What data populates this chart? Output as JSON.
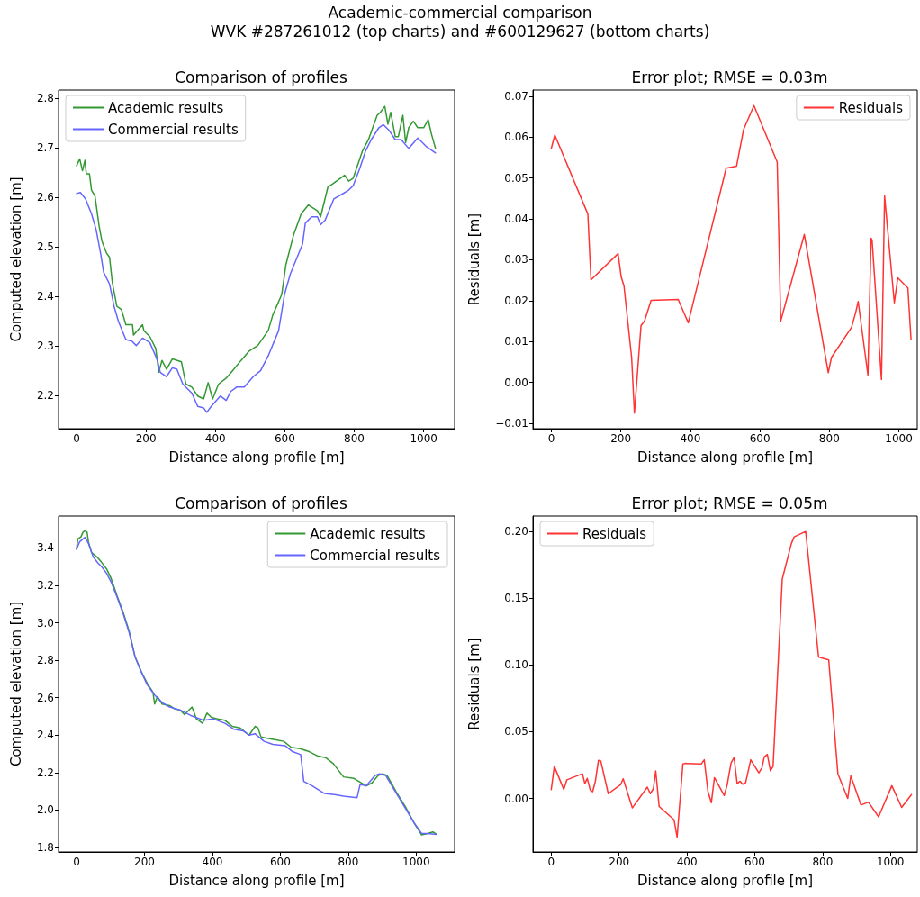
{
  "chart_data": [
    {
      "type": "line",
      "title": "Comparison of profiles",
      "xlabel": "Distance along profile [m]",
      "ylabel": "Computed elevation [m]",
      "annotations": [
        "Academic-commercial comparison",
        "WVK #287261012 (top charts) and #600129627 (bottom charts)"
      ],
      "grid": false,
      "legend": "top left",
      "marker": "none",
      "line_style": "solid",
      "xlim": [
        -52,
        1089
      ],
      "xticks": [
        0,
        200,
        400,
        600,
        800,
        1000
      ],
      "ylim": [
        2.133,
        2.817
      ],
      "yticks": [
        2.2,
        2.3,
        2.4,
        2.5,
        2.6,
        2.7,
        2.8
      ],
      "series": [
        {
          "name": "Academic results",
          "color": "#339933",
          "x": [
            0,
            9,
            17,
            24,
            28,
            37,
            43,
            53,
            65,
            73,
            86,
            95,
            103,
            116,
            129,
            142,
            161,
            164,
            190,
            194,
            211,
            228,
            237,
            246,
            259,
            276,
            302,
            315,
            332,
            349,
            366,
            379,
            392,
            409,
            431,
            453,
            474,
            496,
            522,
            552,
            565,
            591,
            603,
            625,
            647,
            668,
            694,
            703,
            724,
            737,
            772,
            784,
            797,
            823,
            841,
            866,
            875,
            888,
            897,
            905,
            918,
            927,
            940,
            948,
            957,
            970,
            983,
            1000,
            1013,
            1022,
            1034
          ],
          "values": [
            2.664,
            2.678,
            2.654,
            2.675,
            2.648,
            2.648,
            2.615,
            2.603,
            2.542,
            2.512,
            2.488,
            2.479,
            2.428,
            2.38,
            2.374,
            2.343,
            2.343,
            2.322,
            2.343,
            2.331,
            2.319,
            2.295,
            2.247,
            2.271,
            2.253,
            2.274,
            2.268,
            2.223,
            2.217,
            2.199,
            2.193,
            2.226,
            2.193,
            2.223,
            2.235,
            2.253,
            2.271,
            2.289,
            2.301,
            2.331,
            2.362,
            2.404,
            2.464,
            2.524,
            2.567,
            2.585,
            2.573,
            2.561,
            2.621,
            2.627,
            2.645,
            2.633,
            2.639,
            2.693,
            2.717,
            2.766,
            2.772,
            2.784,
            2.748,
            2.772,
            2.723,
            2.723,
            2.766,
            2.711,
            2.741,
            2.754,
            2.741,
            2.741,
            2.757,
            2.729,
            2.699
          ]
        },
        {
          "name": "Commercial results",
          "color": "#6666ff",
          "x": [
            0,
            11,
            26,
            43,
            56,
            69,
            78,
            95,
            108,
            121,
            142,
            159,
            172,
            190,
            211,
            233,
            241,
            259,
            276,
            289,
            306,
            332,
            349,
            366,
            375,
            388,
            414,
            431,
            444,
            461,
            483,
            509,
            530,
            552,
            582,
            599,
            616,
            651,
            659,
            677,
            694,
            703,
            716,
            741,
            763,
            784,
            797,
            815,
            832,
            849,
            871,
            884,
            901,
            918,
            935,
            957,
            983,
            1009,
            1034
          ],
          "values": [
            2.608,
            2.61,
            2.597,
            2.567,
            2.536,
            2.488,
            2.449,
            2.425,
            2.38,
            2.349,
            2.313,
            2.31,
            2.301,
            2.316,
            2.307,
            2.271,
            2.247,
            2.238,
            2.256,
            2.253,
            2.223,
            2.205,
            2.178,
            2.175,
            2.166,
            2.178,
            2.199,
            2.19,
            2.208,
            2.217,
            2.217,
            2.238,
            2.25,
            2.28,
            2.331,
            2.404,
            2.446,
            2.506,
            2.548,
            2.561,
            2.561,
            2.545,
            2.554,
            2.597,
            2.606,
            2.615,
            2.624,
            2.657,
            2.693,
            2.717,
            2.741,
            2.747,
            2.735,
            2.717,
            2.717,
            2.699,
            2.72,
            2.702,
            2.69
          ]
        }
      ]
    },
    {
      "type": "line",
      "title": "Error plot; RMSE = 0.03m",
      "xlabel": "Distance along profile [m]",
      "ylabel": "Residuals [m]",
      "grid": false,
      "legend": "top right",
      "marker": "none",
      "line_style": "solid",
      "xlim": [
        -53,
        1053
      ],
      "xticks": [
        0,
        200,
        400,
        600,
        800,
        1000
      ],
      "ylim": [
        -0.0113,
        0.0715
      ],
      "yticks": [
        {
          "value": -0.01,
          "label": "−0.01"
        },
        {
          "value": 0,
          "label": "0.00"
        },
        {
          "value": 0.01,
          "label": "0.01"
        },
        {
          "value": 0.02,
          "label": "0.02"
        },
        {
          "value": 0.03,
          "label": "0.03"
        },
        {
          "value": 0.04,
          "label": "0.04"
        },
        {
          "value": 0.05,
          "label": "0.05"
        },
        {
          "value": 0.06,
          "label": "0.06"
        },
        {
          "value": 0.07,
          "label": "0.07"
        }
      ],
      "series": [
        {
          "name": "Residuals",
          "color": "#ff3333",
          "x": [
            0,
            10,
            105,
            114,
            192,
            201,
            209,
            231,
            239,
            258,
            268,
            287,
            365,
            394,
            503,
            533,
            553,
            583,
            650,
            660,
            728,
            797,
            806,
            864,
            876,
            883,
            911,
            920,
            923,
            950,
            959,
            987,
            997,
            1026,
            1035
          ],
          "values": [
            0.0573,
            0.0605,
            0.0412,
            0.0251,
            0.0315,
            0.0258,
            0.0236,
            0.0061,
            -0.0075,
            0.0139,
            0.015,
            0.0201,
            0.0203,
            0.0146,
            0.0524,
            0.0529,
            0.0618,
            0.0677,
            0.0539,
            0.015,
            0.0362,
            0.0024,
            0.0061,
            0.0135,
            0.0172,
            0.0198,
            0.0018,
            0.0353,
            0.0348,
            0.0007,
            0.0456,
            0.0195,
            0.0256,
            0.0231,
            0.0106
          ]
        }
      ]
    },
    {
      "type": "line",
      "title": "Comparison of profiles",
      "xlabel": "Distance along profile [m]",
      "ylabel": "Computed elevation [m]",
      "grid": false,
      "legend": "top right",
      "marker": "none",
      "line_style": "solid",
      "xlim": [
        -53,
        1113
      ],
      "xticks": [
        0,
        200,
        400,
        600,
        800,
        1000
      ],
      "ylim": [
        1.776,
        3.57
      ],
      "yticks": [
        1.8,
        {
          "value": 2,
          "label": "2.0"
        },
        2.2,
        2.4,
        2.6,
        2.8,
        {
          "value": 3,
          "label": "3.0"
        },
        3.2,
        3.4
      ],
      "series": [
        {
          "name": "Academic results",
          "color": "#339933",
          "x": [
            0,
            4,
            13,
            19,
            25,
            31,
            35,
            44,
            62,
            71,
            88,
            102,
            119,
            137,
            155,
            172,
            190,
            208,
            225,
            230,
            238,
            252,
            274,
            287,
            305,
            318,
            327,
            340,
            353,
            371,
            384,
            397,
            415,
            437,
            459,
            481,
            508,
            526,
            534,
            543,
            561,
            587,
            610,
            632,
            658,
            685,
            711,
            733,
            756,
            786,
            817,
            853,
            870,
            888,
            901,
            914,
            941,
            968,
            994,
            1016,
            1034,
            1049,
            1060
          ],
          "values": [
            3.395,
            3.448,
            3.459,
            3.484,
            3.491,
            3.484,
            3.432,
            3.376,
            3.348,
            3.329,
            3.289,
            3.236,
            3.146,
            3.058,
            2.955,
            2.82,
            2.741,
            2.677,
            2.629,
            2.566,
            2.606,
            2.566,
            2.558,
            2.542,
            2.534,
            2.51,
            2.526,
            2.55,
            2.487,
            2.463,
            2.518,
            2.495,
            2.487,
            2.479,
            2.447,
            2.439,
            2.4,
            2.447,
            2.439,
            2.391,
            2.383,
            2.375,
            2.367,
            2.335,
            2.328,
            2.312,
            2.288,
            2.28,
            2.248,
            2.177,
            2.169,
            2.129,
            2.145,
            2.185,
            2.193,
            2.185,
            2.098,
            2.018,
            1.931,
            1.867,
            1.875,
            1.883,
            1.87
          ]
        },
        {
          "name": "Commercial results",
          "color": "#6666ff",
          "x": [
            0,
            9,
            25,
            35,
            49,
            62,
            75,
            88,
            102,
            119,
            137,
            155,
            172,
            190,
            208,
            230,
            252,
            274,
            305,
            340,
            375,
            402,
            437,
            464,
            490,
            508,
            526,
            552,
            578,
            614,
            636,
            660,
            669,
            694,
            729,
            764,
            786,
            826,
            835,
            853,
            879,
            892,
            910,
            936,
            968,
            994,
            1016,
            1034,
            1060
          ],
          "values": [
            3.392,
            3.432,
            3.456,
            3.424,
            3.352,
            3.321,
            3.297,
            3.265,
            3.217,
            3.138,
            3.05,
            2.947,
            2.82,
            2.741,
            2.669,
            2.614,
            2.574,
            2.55,
            2.534,
            2.502,
            2.479,
            2.487,
            2.463,
            2.431,
            2.423,
            2.4,
            2.407,
            2.367,
            2.351,
            2.344,
            2.312,
            2.296,
            2.153,
            2.129,
            2.089,
            2.081,
            2.074,
            2.066,
            2.137,
            2.129,
            2.185,
            2.193,
            2.185,
            2.106,
            2.01,
            1.931,
            1.875,
            1.875,
            1.87
          ]
        }
      ]
    },
    {
      "type": "line",
      "title": "Error plot; RMSE = 0.05m",
      "xlabel": "Distance along profile [m]",
      "ylabel": "Residuals [m]",
      "grid": false,
      "legend": "top left",
      "marker": "none",
      "line_style": "solid",
      "xlim": [
        -54,
        1079
      ],
      "xticks": [
        0,
        200,
        400,
        600,
        800,
        1000
      ],
      "ylim": [
        -0.0401,
        0.2116
      ],
      "yticks": [
        {
          "value": 0,
          "label": "0.00"
        },
        {
          "value": 0.05,
          "label": "0.05"
        },
        {
          "value": 0.1,
          "label": "0.10"
        },
        {
          "value": 0.15,
          "label": "0.15"
        },
        {
          "value": 0.2,
          "label": "0.20"
        }
      ],
      "series": [
        {
          "name": "Residuals",
          "color": "#ff3333",
          "x": [
            0,
            9,
            37,
            46,
            92,
            99,
            106,
            115,
            122,
            130,
            139,
            146,
            168,
            204,
            212,
            239,
            283,
            292,
            301,
            308,
            318,
            362,
            371,
            388,
            395,
            442,
            451,
            462,
            472,
            481,
            510,
            519,
            530,
            539,
            548,
            557,
            564,
            573,
            588,
            612,
            621,
            628,
            637,
            646,
            654,
            681,
            708,
            716,
            750,
            788,
            818,
            845,
            874,
            883,
            913,
            935,
            965,
            1004,
            1033,
            1062
          ],
          "values": [
            0.0067,
            0.0241,
            0.0067,
            0.014,
            0.0185,
            0.0111,
            0.0151,
            0.0062,
            0.0051,
            0.0129,
            0.0285,
            0.0281,
            0.0036,
            0.0102,
            0.0147,
            -0.0071,
            0.0085,
            0.0036,
            0.0073,
            0.0207,
            -0.006,
            -0.016,
            -0.029,
            0.0258,
            0.0263,
            0.0258,
            0.029,
            0.0051,
            -0.0031,
            0.0156,
            0.0022,
            0.0107,
            0.0267,
            0.0307,
            0.0111,
            0.0129,
            0.0107,
            0.0118,
            0.029,
            0.0192,
            0.0229,
            0.0312,
            0.033,
            0.0207,
            0.0241,
            0.1644,
            0.1911,
            0.196,
            0.2,
            0.106,
            0.1038,
            0.0185,
            0,
            0.0169,
            -0.0049,
            -0.0027,
            -0.0138,
            0.0096,
            -0.0067,
            0.0029
          ]
        }
      ]
    }
  ]
}
